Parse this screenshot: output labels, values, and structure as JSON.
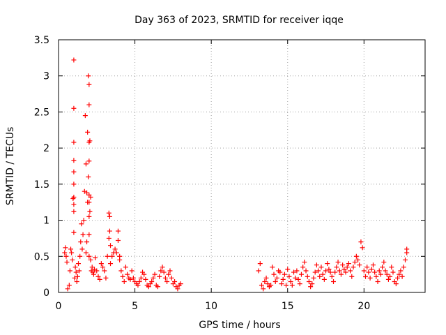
{
  "chart_data": {
    "type": "scatter",
    "title": "Day 363 of 2023, SRMTID for receiver iqqe",
    "xlabel": "GPS time / hours",
    "ylabel": "SRMTID / TECUs",
    "xlim": [
      0,
      24
    ],
    "ylim": [
      0,
      3.5
    ],
    "x_ticks": [
      0,
      5,
      10,
      15,
      20
    ],
    "x_tick_labels": [
      "0",
      "5",
      "10",
      "15",
      "20"
    ],
    "y_ticks": [
      0,
      0.5,
      1,
      1.5,
      2,
      2.5,
      3,
      3.5
    ],
    "y_tick_labels": [
      "0",
      "0.5",
      "1",
      "1.5",
      "2",
      "2.5",
      "3",
      "3.5"
    ],
    "grid": true,
    "marker": "plus",
    "series": [
      {
        "name": "SRMTID",
        "color": "#ff0000",
        "x": [
          0.4,
          0.45,
          0.5,
          0.55,
          0.6,
          0.7,
          0.75,
          0.8,
          0.85,
          0.9,
          0.95,
          1.0,
          1.0,
          1.0,
          1.0,
          1.0,
          1.0,
          1.0,
          1.0,
          1.0,
          1.0,
          1.05,
          1.1,
          1.15,
          1.2,
          1.25,
          1.3,
          1.35,
          1.4,
          1.45,
          1.5,
          1.55,
          1.6,
          1.65,
          1.7,
          1.75,
          1.8,
          1.8,
          1.85,
          1.85,
          1.9,
          1.9,
          1.95,
          1.95,
          2.0,
          2.0,
          2.0,
          2.0,
          2.0,
          2.0,
          2.0,
          2.0,
          2.0,
          2.05,
          2.05,
          2.1,
          2.1,
          2.15,
          2.2,
          2.25,
          2.3,
          2.35,
          2.4,
          2.5,
          2.6,
          2.7,
          2.8,
          2.9,
          3.0,
          3.1,
          3.2,
          3.3,
          3.3,
          3.35,
          3.35,
          3.4,
          3.4,
          3.5,
          3.6,
          3.7,
          3.8,
          3.9,
          3.9,
          4.0,
          4.0,
          4.1,
          4.2,
          4.3,
          4.4,
          4.5,
          4.6,
          4.7,
          4.8,
          4.9,
          5.0,
          5.1,
          5.2,
          5.3,
          5.4,
          5.5,
          5.6,
          5.7,
          5.8,
          5.9,
          6.0,
          6.1,
          6.2,
          6.3,
          6.4,
          6.5,
          6.6,
          6.7,
          6.8,
          6.9,
          7.0,
          7.1,
          7.2,
          7.3,
          7.4,
          7.5,
          7.6,
          7.7,
          7.8,
          7.9,
          8.0,
          13.1,
          13.2,
          13.3,
          13.4,
          13.5,
          13.6,
          13.7,
          13.8,
          13.9,
          14.0,
          14.1,
          14.2,
          14.3,
          14.4,
          14.5,
          14.6,
          14.7,
          14.8,
          14.9,
          15.0,
          15.1,
          15.2,
          15.3,
          15.4,
          15.5,
          15.6,
          15.7,
          15.8,
          15.9,
          16.0,
          16.1,
          16.2,
          16.3,
          16.4,
          16.5,
          16.6,
          16.7,
          16.8,
          16.9,
          17.0,
          17.1,
          17.2,
          17.3,
          17.4,
          17.5,
          17.6,
          17.7,
          17.8,
          17.9,
          18.0,
          18.1,
          18.2,
          18.3,
          18.4,
          18.5,
          18.6,
          18.7,
          18.8,
          18.9,
          19.0,
          19.1,
          19.2,
          19.3,
          19.4,
          19.5,
          19.6,
          19.7,
          19.8,
          19.9,
          20.0,
          20.1,
          20.2,
          20.3,
          20.4,
          20.5,
          20.6,
          20.7,
          20.8,
          20.9,
          21.0,
          21.1,
          21.2,
          21.3,
          21.4,
          21.5,
          21.6,
          21.7,
          21.8,
          21.9,
          22.0,
          22.1,
          22.2,
          22.3,
          22.4,
          22.5,
          22.6,
          22.7,
          22.8,
          22.8
        ],
        "y": [
          0.55,
          0.62,
          0.5,
          0.42,
          0.05,
          0.1,
          0.3,
          0.6,
          0.55,
          0.45,
          1.3,
          3.22,
          2.55,
          2.08,
          1.83,
          1.67,
          1.5,
          1.32,
          1.22,
          1.12,
          0.83,
          0.2,
          0.35,
          0.28,
          0.15,
          0.22,
          0.4,
          0.3,
          0.5,
          0.7,
          0.95,
          0.6,
          0.8,
          1.0,
          1.4,
          2.45,
          1.78,
          0.55,
          1.38,
          0.7,
          1.25,
          2.22,
          1.6,
          3.0,
          2.88,
          2.6,
          2.08,
          1.82,
          1.35,
          1.25,
          1.05,
          0.8,
          0.5,
          2.1,
          1.12,
          1.32,
          0.45,
          0.3,
          0.35,
          0.28,
          0.25,
          0.32,
          0.48,
          0.3,
          0.22,
          0.18,
          0.4,
          0.35,
          0.3,
          0.2,
          0.5,
          1.1,
          0.75,
          1.05,
          0.85,
          0.65,
          0.4,
          0.5,
          0.55,
          0.6,
          0.55,
          0.85,
          0.72,
          0.5,
          0.45,
          0.3,
          0.22,
          0.15,
          0.35,
          0.25,
          0.2,
          0.18,
          0.3,
          0.2,
          0.15,
          0.12,
          0.1,
          0.15,
          0.2,
          0.28,
          0.25,
          0.18,
          0.1,
          0.08,
          0.12,
          0.15,
          0.2,
          0.25,
          0.1,
          0.08,
          0.22,
          0.3,
          0.35,
          0.28,
          0.2,
          0.15,
          0.25,
          0.3,
          0.2,
          0.12,
          0.15,
          0.08,
          0.05,
          0.1,
          0.12,
          0.3,
          0.4,
          0.1,
          0.05,
          0.15,
          0.2,
          0.12,
          0.08,
          0.1,
          0.35,
          0.25,
          0.15,
          0.2,
          0.3,
          0.28,
          0.12,
          0.18,
          0.25,
          0.1,
          0.32,
          0.22,
          0.15,
          0.1,
          0.28,
          0.2,
          0.3,
          0.18,
          0.12,
          0.25,
          0.35,
          0.42,
          0.3,
          0.22,
          0.15,
          0.08,
          0.12,
          0.2,
          0.28,
          0.38,
          0.3,
          0.22,
          0.35,
          0.25,
          0.18,
          0.3,
          0.4,
          0.32,
          0.28,
          0.22,
          0.15,
          0.28,
          0.35,
          0.42,
          0.3,
          0.25,
          0.38,
          0.32,
          0.28,
          0.35,
          0.4,
          0.3,
          0.22,
          0.35,
          0.42,
          0.5,
          0.45,
          0.38,
          0.7,
          0.62,
          0.3,
          0.22,
          0.35,
          0.28,
          0.2,
          0.32,
          0.38,
          0.28,
          0.22,
          0.15,
          0.3,
          0.25,
          0.35,
          0.42,
          0.3,
          0.25,
          0.18,
          0.22,
          0.35,
          0.28,
          0.15,
          0.12,
          0.2,
          0.25,
          0.3,
          0.22,
          0.35,
          0.45,
          0.55,
          0.6
        ]
      }
    ]
  }
}
